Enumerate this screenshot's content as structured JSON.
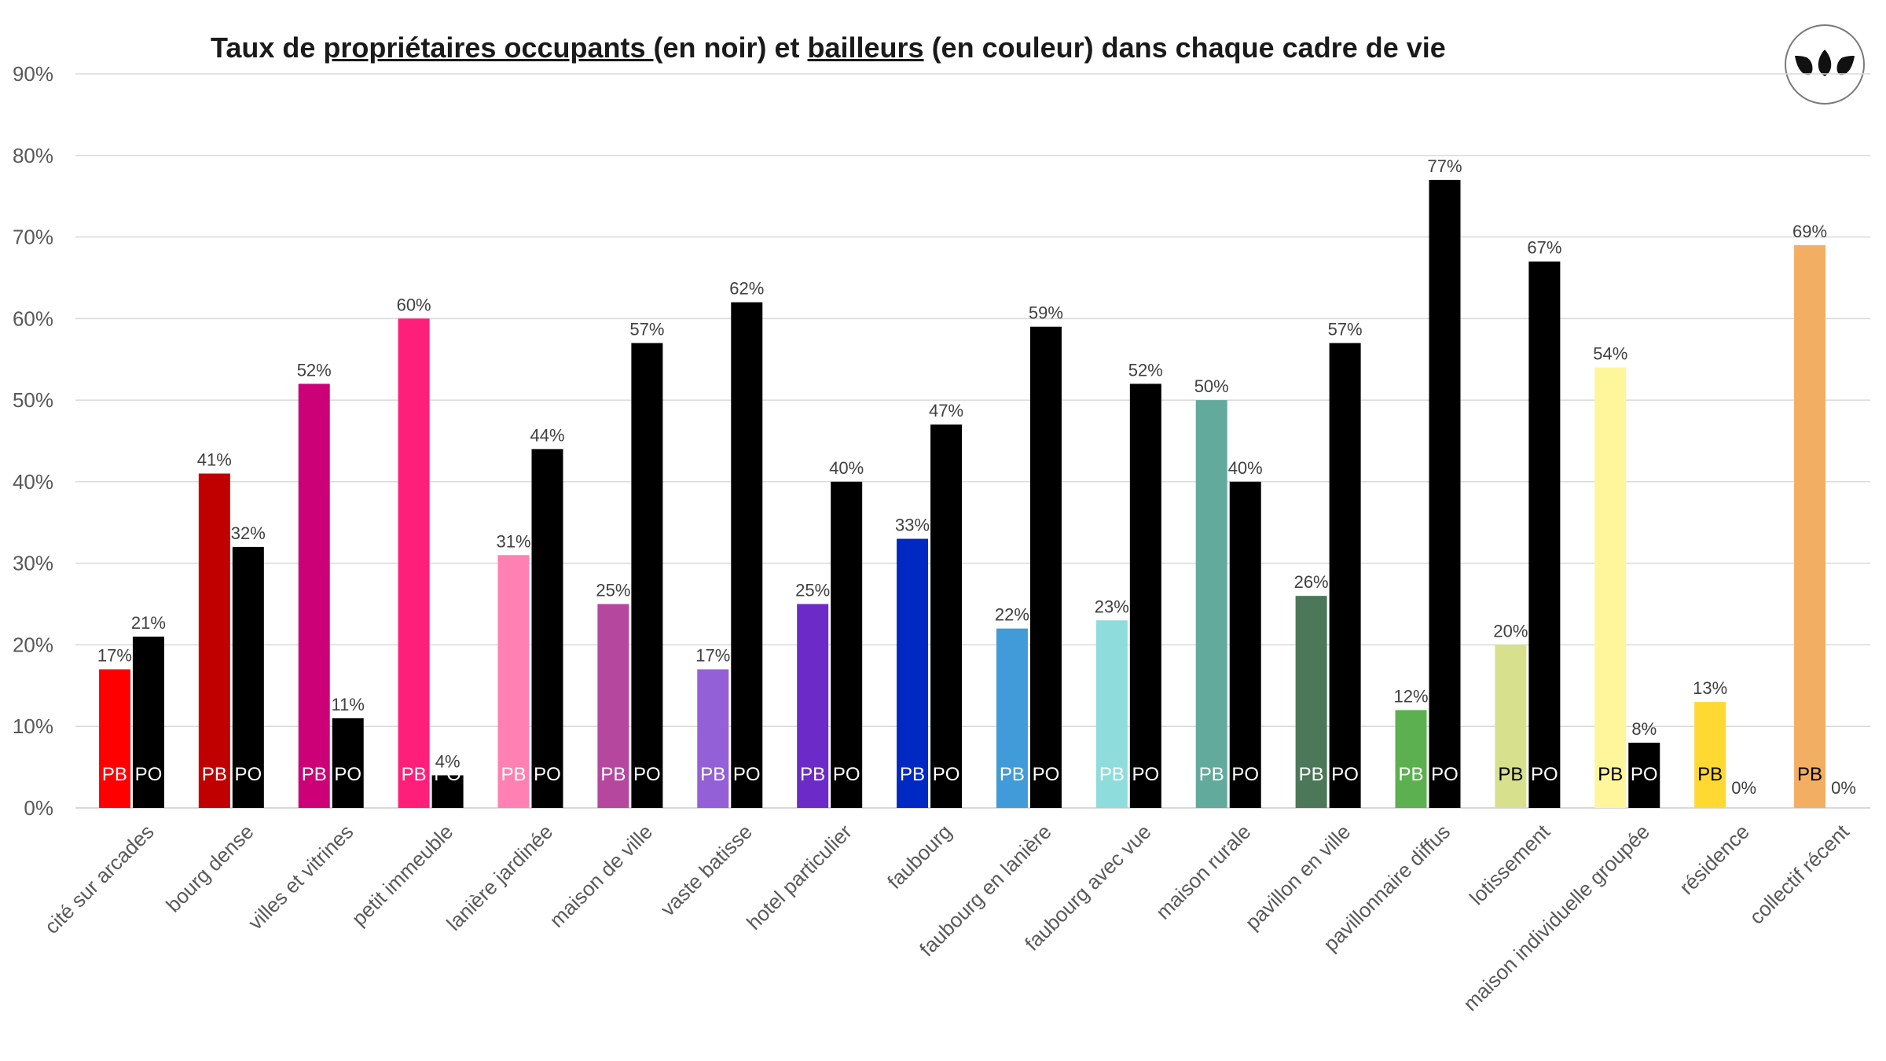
{
  "title": {
    "part1": "Taux de ",
    "part2": "propriétaires occupants ",
    "part3": "(en noir) et ",
    "part4": "bailleurs",
    "part5": " (en couleur) dans chaque cadre de vie"
  },
  "logo": {
    "icon": "three-leaves-logo"
  },
  "chart_data": {
    "type": "bar",
    "title": "Taux de propriétaires occupants (en noir) et bailleurs (en couleur) dans chaque cadre de vie",
    "ylim": [
      0,
      90
    ],
    "yticks": [
      "0%",
      "10%",
      "20%",
      "30%",
      "40%",
      "50%",
      "60%",
      "70%",
      "80%",
      "90%"
    ],
    "grid": true,
    "categories": [
      "cité sur arcades",
      "bourg dense",
      "villes et vitrines",
      "petit immeuble",
      "lanière jardinée",
      "maison de ville",
      "vaste batisse",
      "hotel particulier",
      "faubourg",
      "faubourg en lanière",
      "faubourg avec vue",
      "maison rurale",
      "pavillon en ville",
      "pavillonnaire diffus",
      "lotissement",
      "maison individuelle groupée",
      "résidence",
      "collectif récent"
    ],
    "series": [
      {
        "name": "PB",
        "values": [
          17,
          41,
          52,
          60,
          31,
          25,
          17,
          25,
          33,
          22,
          23,
          50,
          26,
          12,
          20,
          54,
          13,
          69
        ],
        "data_labels": [
          "17%",
          "41%",
          "52%",
          "60%",
          "31%",
          "25%",
          "17%",
          "25%",
          "33%",
          "22%",
          "23%",
          "50%",
          "26%",
          "12%",
          "20%",
          "54%",
          "13%",
          "69%"
        ],
        "colors": [
          "#ff0000",
          "#c00000",
          "#cc0077",
          "#ff1f7a",
          "#ff80b3",
          "#b5489e",
          "#9460d8",
          "#6c2bc8",
          "#0029c4",
          "#419bd8",
          "#8fdcdc",
          "#62aa9c",
          "#4c7759",
          "#5cb050",
          "#d6e08d",
          "#fff59a",
          "#ffd832",
          "#f2ae62"
        ],
        "label_colors": [
          "#ffffff",
          "#ffffff",
          "#ffffff",
          "#ffffff",
          "#ffffff",
          "#ffffff",
          "#ffffff",
          "#ffffff",
          "#ffffff",
          "#ffffff",
          "#ffffff",
          "#ffffff",
          "#ffffff",
          "#ffffff",
          "#000000",
          "#000000",
          "#000000",
          "#000000"
        ]
      },
      {
        "name": "PO",
        "values": [
          21,
          32,
          11,
          4,
          44,
          57,
          62,
          40,
          47,
          59,
          52,
          40,
          57,
          77,
          67,
          8,
          0,
          0
        ],
        "data_labels": [
          "21%",
          "32%",
          "11%",
          "4%",
          "44%",
          "57%",
          "62%",
          "40%",
          "47%",
          "59%",
          "52%",
          "40%",
          "57%",
          "77%",
          "67%",
          "8%",
          "0%",
          "0%"
        ],
        "colors": [
          "#000000"
        ],
        "label_colors": [
          "#ffffff"
        ]
      }
    ]
  }
}
